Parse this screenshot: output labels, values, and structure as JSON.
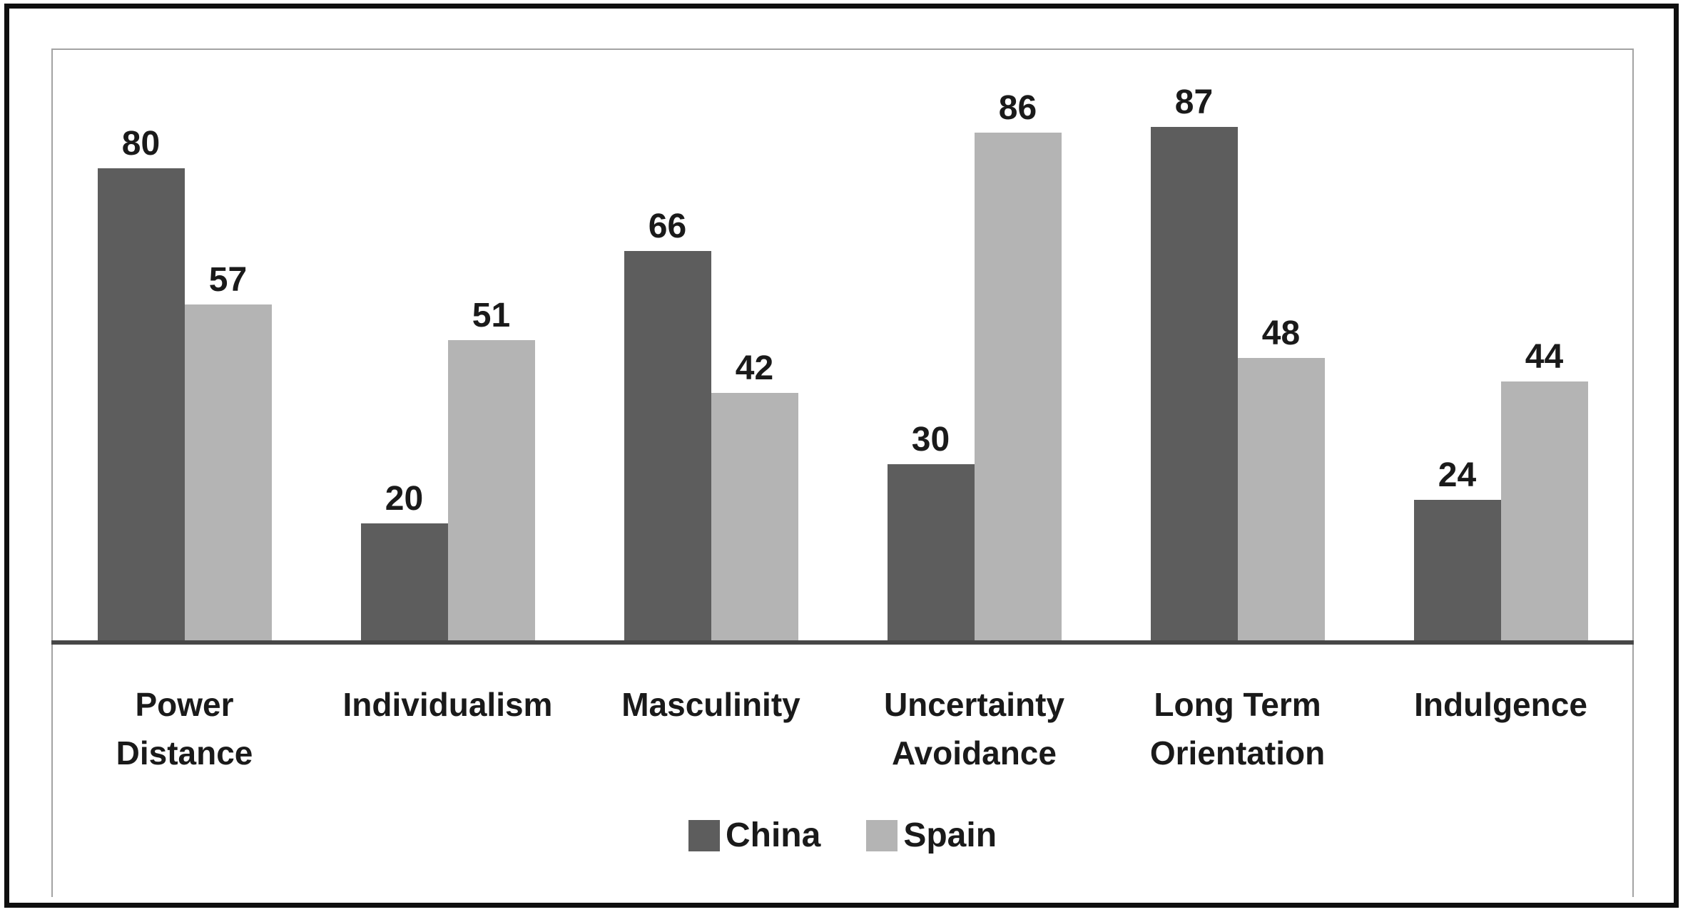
{
  "chart_data": {
    "type": "bar",
    "title": "",
    "categories": [
      "Power Distance",
      "Individualism",
      "Masculinity",
      "Uncertainty Avoidance",
      "Long Term Orientation",
      "Indulgence"
    ],
    "category_lines": [
      [
        "Power",
        "Distance"
      ],
      [
        "Individualism"
      ],
      [
        "Masculinity"
      ],
      [
        "Uncertainty",
        "Avoidance"
      ],
      [
        "Long Term",
        "Orientation"
      ],
      [
        "Indulgence"
      ]
    ],
    "series": [
      {
        "name": "China",
        "color": "#5d5d5d",
        "values": [
          80,
          20,
          66,
          30,
          87,
          24
        ]
      },
      {
        "name": "Spain",
        "color": "#b4b4b4",
        "values": [
          57,
          51,
          42,
          86,
          48,
          44
        ]
      }
    ],
    "ylim": [
      0,
      100
    ],
    "grid": false,
    "y_axis_visible": false,
    "value_labels": true,
    "legend_position": "bottom"
  },
  "style": {
    "bar_color_china": "#5d5d5d",
    "bar_color_spain": "#b4b4b4",
    "axis_line_color": "#474747",
    "frame_border_color": "#a3a3a3",
    "outer_border_color": "#0f0f0f",
    "text_color": "#1a1a1a"
  }
}
